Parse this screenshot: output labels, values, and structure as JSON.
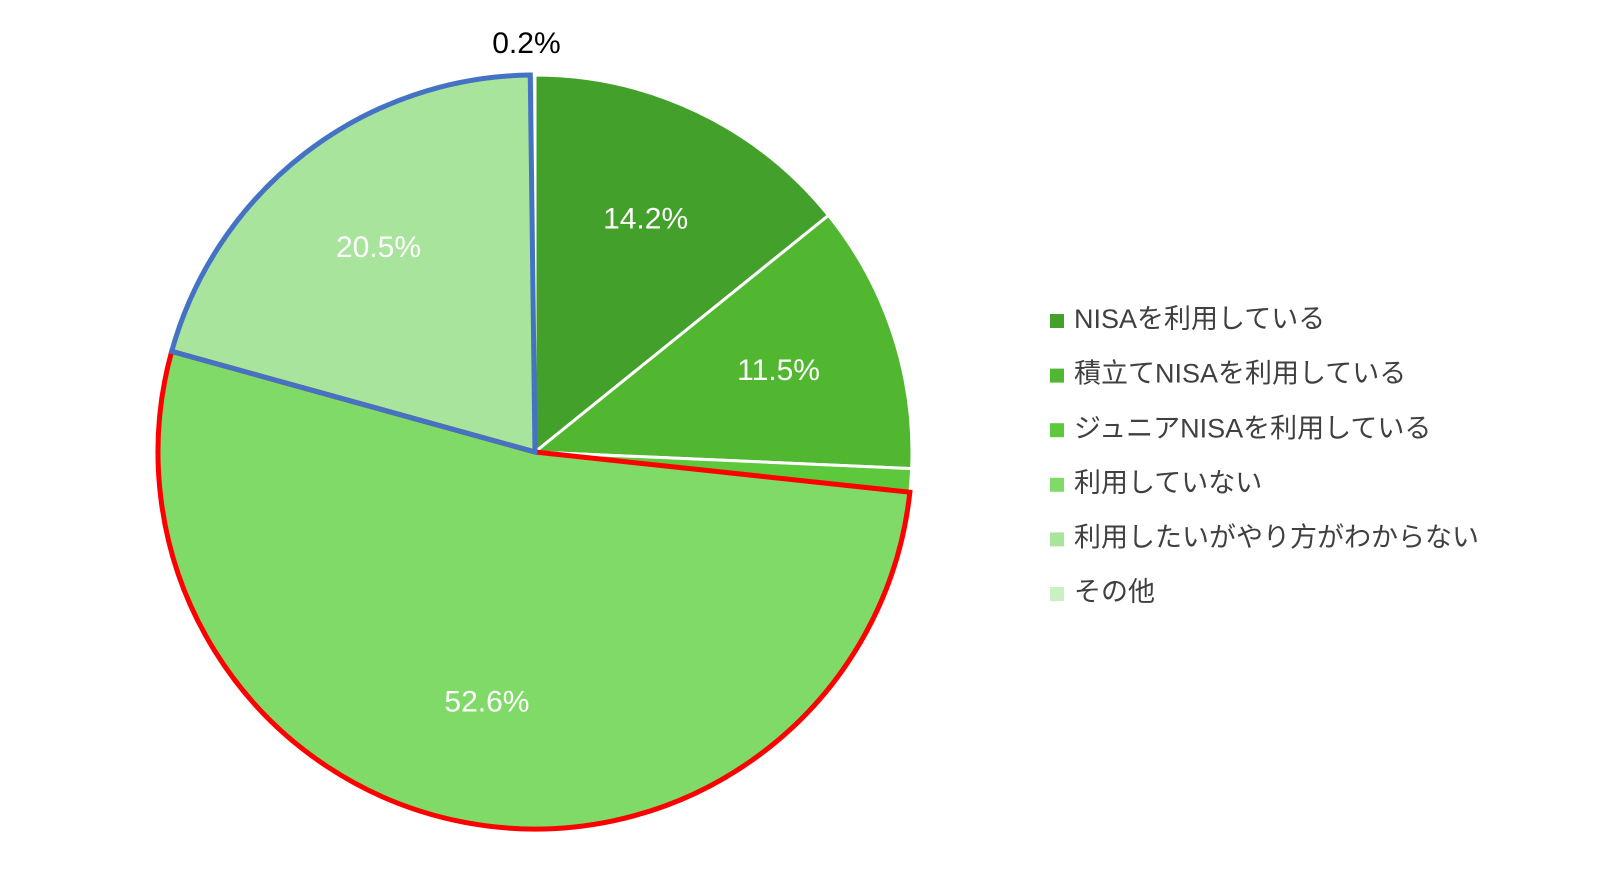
{
  "chart_data": {
    "type": "pie",
    "categories": [
      "NISAを利用している",
      "積立てNISAを利用している",
      "ジュニアNISAを利用している",
      "利用していない",
      "利用したいがやり方がわからない",
      "その他"
    ],
    "values": [
      14.2,
      11.5,
      1.0,
      52.6,
      20.5,
      0.2
    ],
    "value_labels": [
      "14.2%",
      "11.5%",
      null,
      "52.6%",
      "20.5%",
      "0.2%"
    ],
    "colors": [
      "#43a02a",
      "#52b730",
      "#5ec83c",
      "#7fda68",
      "#a8e49c",
      "#c8f0c0"
    ],
    "outlines": [
      null,
      null,
      null,
      "#ff0000",
      "#4472c4",
      null
    ],
    "legend": "right"
  }
}
